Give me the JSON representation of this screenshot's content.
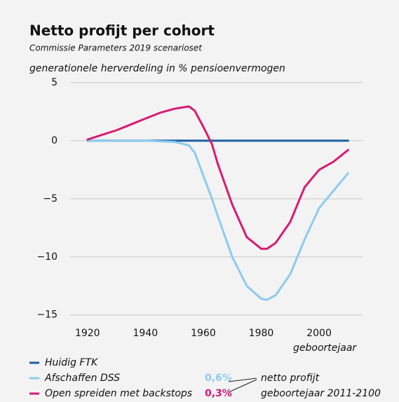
{
  "chart_data": {
    "type": "line",
    "title": "Netto profijt per cohort",
    "subtitle": "Commissie Parameters 2019 scenarioset",
    "y_label": "generationele herverdeling in % pensioenvermogen",
    "x_label": "geboortejaar",
    "x": [
      1920,
      1925,
      1930,
      1935,
      1940,
      1945,
      1950,
      1955,
      1957,
      1960,
      1963,
      1965,
      1970,
      1975,
      1980,
      1982,
      1985,
      1990,
      1995,
      2000,
      2005,
      2010
    ],
    "series": [
      {
        "name": "Huidig FTK",
        "color": "#1a5fa0",
        "values": [
          0,
          0,
          0,
          0,
          0,
          0,
          0,
          0,
          0,
          0,
          0,
          0,
          0,
          0,
          0,
          0,
          0,
          0,
          0,
          0,
          0,
          0
        ]
      },
      {
        "name": "Afschaffen DSS",
        "color": "#8ccbf0",
        "net_profit_label": "0,6%",
        "values": [
          0,
          0,
          0,
          0,
          0,
          -0.05,
          -0.1,
          -0.4,
          -1.0,
          -3.0,
          -5.0,
          -6.5,
          -10.0,
          -12.5,
          -13.6,
          -13.7,
          -13.3,
          -11.5,
          -8.5,
          -5.8,
          -4.3,
          -2.8
        ]
      },
      {
        "name": "Open spreiden met backstops",
        "color": "#d81b72",
        "net_profit_label": "0,3%",
        "values": [
          0.1,
          0.5,
          0.9,
          1.4,
          1.9,
          2.4,
          2.75,
          2.95,
          2.6,
          1.2,
          -0.3,
          -2.0,
          -5.5,
          -8.3,
          -9.3,
          -9.3,
          -8.8,
          -7.0,
          -4.0,
          -2.5,
          -1.8,
          -0.8
        ]
      }
    ],
    "net_profit_note": [
      "netto profijt",
      "geboortejaar 2011-2100"
    ],
    "xlim": [
      1914,
      2015
    ],
    "xticks": [
      1920,
      1940,
      1960,
      1980,
      2000
    ],
    "ylim": [
      -15.5,
      5.3
    ],
    "yticks": [
      5,
      0,
      {
        "value": -5,
        "label": "−5"
      },
      {
        "value": -10,
        "label": "−10"
      },
      {
        "value": -15,
        "label": "−15"
      }
    ],
    "grid": true
  }
}
